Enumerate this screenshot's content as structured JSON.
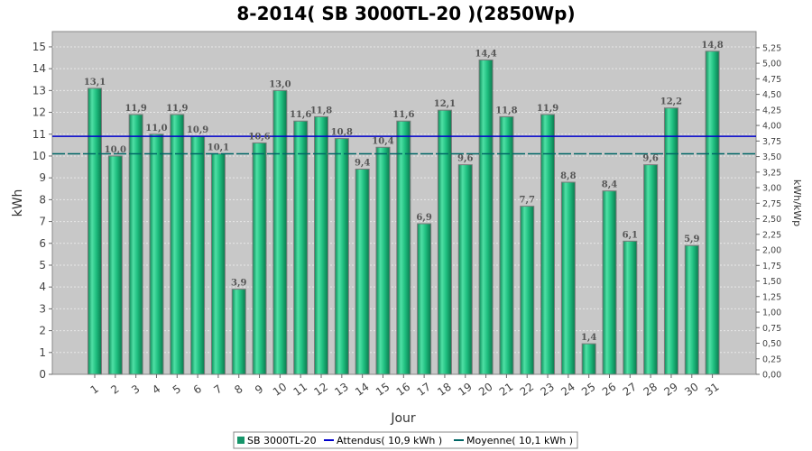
{
  "chart_data": {
    "type": "bar",
    "title": "8-2014( SB 3000TL-20 )(2850Wp)",
    "xlabel": "Jour",
    "ylabel": "kWh",
    "y2label": "kWh/kWp",
    "categories": [
      "1",
      "2",
      "3",
      "4",
      "5",
      "6",
      "7",
      "8",
      "9",
      "10",
      "11",
      "12",
      "13",
      "14",
      "15",
      "16",
      "17",
      "18",
      "19",
      "20",
      "21",
      "22",
      "23",
      "24",
      "25",
      "26",
      "27",
      "28",
      "29",
      "30",
      "31"
    ],
    "series": [
      {
        "name": "SB 3000TL-20",
        "values": [
          13.1,
          10.0,
          11.9,
          11.0,
          11.9,
          10.9,
          10.1,
          3.9,
          10.6,
          13.0,
          11.6,
          11.8,
          10.8,
          9.4,
          10.4,
          11.6,
          6.9,
          12.1,
          9.6,
          14.4,
          11.8,
          7.7,
          11.9,
          8.8,
          1.4,
          8.4,
          6.1,
          9.6,
          12.2,
          5.9,
          14.8
        ],
        "labels": [
          "13,1",
          "10,0",
          "11,9",
          "11,0",
          "11,9",
          "10,9",
          "10,1",
          "3,9",
          "10,6",
          "13,0",
          "11,6",
          "11,8",
          "10,8",
          "9,4",
          "10,4",
          "11,6",
          "6,9",
          "12,1",
          "9,6",
          "14,4",
          "11,8",
          "7,7",
          "11,9",
          "8,8",
          "1,4",
          "8,4",
          "6,1",
          "9,6",
          "12,2",
          "5,9",
          "14,8"
        ]
      }
    ],
    "reference_lines": [
      {
        "name": "Attendus( 10,9 kWh )",
        "value": 10.9,
        "color": "#0000cc",
        "style": "solid"
      },
      {
        "name": "Moyenne( 10,1 kWh )",
        "value": 10.1,
        "color": "#006666",
        "style": "dashed"
      }
    ],
    "ylim": [
      0,
      15.7
    ],
    "yticks": [
      "0",
      "1",
      "2",
      "3",
      "4",
      "5",
      "6",
      "7",
      "8",
      "9",
      "10",
      "11",
      "12",
      "13",
      "14",
      "15"
    ],
    "y2lim": [
      0,
      5.509
    ],
    "y2ticks": [
      "0,00",
      "0,25",
      "0,50",
      "0,75",
      "1,00",
      "1,25",
      "1,50",
      "1,75",
      "2,00",
      "2,25",
      "2,50",
      "2,75",
      "3,00",
      "3,25",
      "3,50",
      "3,75",
      "4,00",
      "4,25",
      "4,50",
      "4,75",
      "5,00",
      "5,25"
    ],
    "grid": true,
    "legend_position": "bottom",
    "colors": {
      "bar_fill": "#1fbf80",
      "bar_light": "#4fe0a5",
      "bar_dark": "#0c8a58",
      "bar_stroke": "#7a7a7a",
      "plot_bg": "#c8c8c8",
      "grid": "#e8e8e8",
      "legend_swatch": "#16956a"
    }
  }
}
